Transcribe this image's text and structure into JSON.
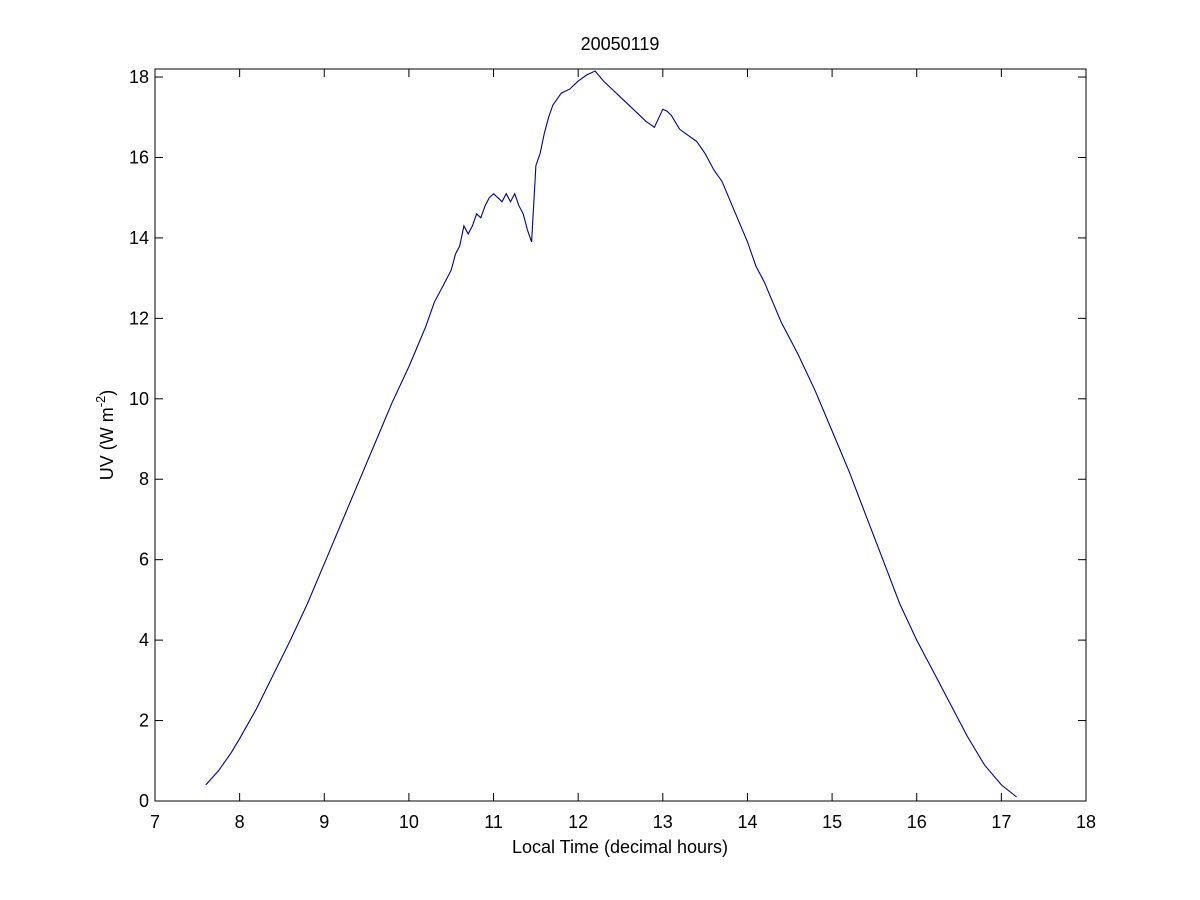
{
  "chart_data": {
    "type": "line",
    "title": "20050119",
    "xlabel": "Local Time (decimal hours)",
    "ylabel": "UV (W m",
    "ylabel_sup": "-2",
    "ylabel_close": ")",
    "xlim": [
      7,
      18
    ],
    "ylim": [
      0,
      18.2
    ],
    "xticks": [
      7,
      8,
      9,
      10,
      11,
      12,
      13,
      14,
      15,
      16,
      17,
      18
    ],
    "yticks": [
      0,
      2,
      4,
      6,
      8,
      10,
      12,
      14,
      16,
      18
    ],
    "grid": false,
    "line_color": "#00008B",
    "series": [
      {
        "x": [
          7.6,
          7.75,
          7.9,
          8.0,
          8.2,
          8.4,
          8.6,
          8.8,
          9.0,
          9.2,
          9.4,
          9.6,
          9.8,
          10.0,
          10.1,
          10.2,
          10.3,
          10.4,
          10.5,
          10.55,
          10.6,
          10.65,
          10.7,
          10.75,
          10.8,
          10.85,
          10.9,
          10.95,
          11.0,
          11.05,
          11.1,
          11.15,
          11.2,
          11.25,
          11.3,
          11.35,
          11.4,
          11.45,
          11.5,
          11.55,
          11.6,
          11.65,
          11.7,
          11.8,
          11.9,
          12.0,
          12.1,
          12.2,
          12.3,
          12.4,
          12.5,
          12.6,
          12.7,
          12.8,
          12.9,
          13.0,
          13.05,
          13.1,
          13.2,
          13.3,
          13.4,
          13.5,
          13.6,
          13.7,
          13.8,
          13.9,
          14.0,
          14.1,
          14.2,
          14.3,
          14.4,
          14.5,
          14.6,
          14.8,
          15.0,
          15.2,
          15.4,
          15.6,
          15.8,
          16.0,
          16.2,
          16.4,
          16.6,
          16.8,
          17.0,
          17.18
        ],
        "y": [
          0.4,
          0.75,
          1.2,
          1.55,
          2.3,
          3.15,
          4.0,
          4.9,
          5.9,
          6.9,
          7.9,
          8.9,
          9.9,
          10.8,
          11.3,
          11.8,
          12.4,
          12.8,
          13.2,
          13.6,
          13.8,
          14.3,
          14.1,
          14.3,
          14.6,
          14.5,
          14.8,
          15.0,
          15.1,
          15.0,
          14.9,
          15.1,
          14.9,
          15.1,
          14.8,
          14.6,
          14.2,
          13.9,
          15.8,
          16.1,
          16.6,
          17.0,
          17.3,
          17.6,
          17.7,
          17.9,
          18.05,
          18.15,
          17.9,
          17.7,
          17.5,
          17.3,
          17.1,
          16.9,
          16.75,
          17.2,
          17.15,
          17.05,
          16.7,
          16.55,
          16.4,
          16.1,
          15.7,
          15.4,
          14.9,
          14.4,
          13.9,
          13.3,
          12.9,
          12.4,
          11.9,
          11.5,
          11.1,
          10.2,
          9.2,
          8.2,
          7.1,
          6.0,
          4.9,
          4.0,
          3.2,
          2.4,
          1.6,
          0.9,
          0.4,
          0.1
        ]
      }
    ]
  }
}
